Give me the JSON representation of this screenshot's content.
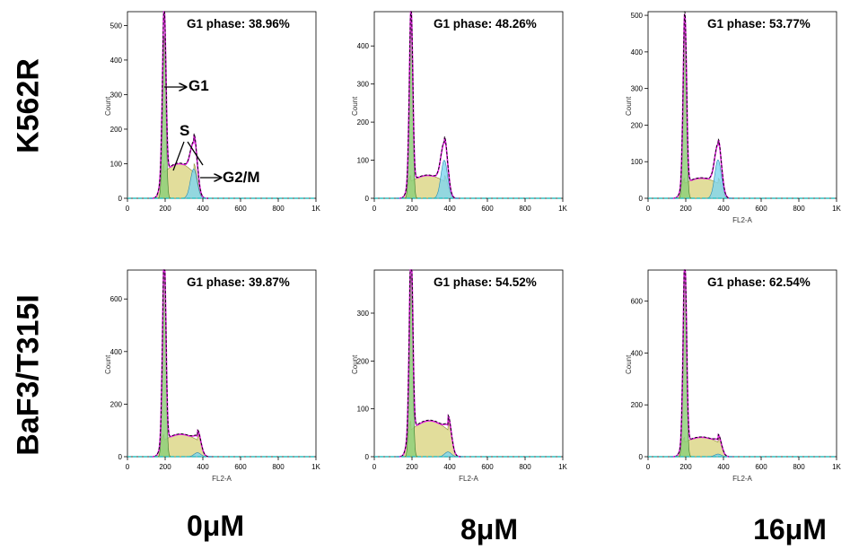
{
  "row_labels": [
    "K562R",
    "BaF3/T315I"
  ],
  "column_labels": [
    "0μM",
    "8μM",
    "16μM"
  ],
  "annotations": {
    "g1": "G1",
    "s": "S",
    "g2m": "G2/M"
  },
  "chart_data": [
    {
      "type": "area",
      "title": "G1 phase: 38.96%",
      "ylabel": "Count",
      "xlabel": "",
      "xlim": [
        0,
        1024
      ],
      "ylim": [
        0,
        540
      ],
      "yticks": [
        0,
        100,
        200,
        300,
        400,
        500
      ],
      "xtick_labels": [
        "0",
        "200",
        "400",
        "600",
        "800",
        "1K"
      ],
      "g1_peak": 470,
      "s_height": 100,
      "g2m_peak": 85,
      "g2m_pos": 360
    },
    {
      "type": "area",
      "title": "G1 phase: 48.26%",
      "ylabel": "Count",
      "xlabel": "",
      "xlim": [
        0,
        1024
      ],
      "ylim": [
        0,
        490
      ],
      "yticks": [
        0,
        100,
        200,
        300,
        400
      ],
      "xtick_labels": [
        "0",
        "200",
        "400",
        "600",
        "800",
        "1K"
      ],
      "g1_peak": 450,
      "s_height": 60,
      "g2m_peak": 100,
      "g2m_pos": 380
    },
    {
      "type": "area",
      "title": "G1 phase: 53.77%",
      "ylabel": "Count",
      "xlabel": "FL2-A",
      "xlim": [
        0,
        1024
      ],
      "ylim": [
        0,
        510
      ],
      "yticks": [
        0,
        100,
        200,
        300,
        400,
        500
      ],
      "xtick_labels": [
        "0",
        "200",
        "400",
        "600",
        "800",
        "1K"
      ],
      "g1_peak": 460,
      "s_height": 55,
      "g2m_peak": 105,
      "g2m_pos": 380
    },
    {
      "type": "area",
      "title": "G1 phase: 39.87%",
      "ylabel": "Count",
      "xlabel": "FL2-A",
      "xlim": [
        0,
        1024
      ],
      "ylim": [
        0,
        710
      ],
      "yticks": [
        0,
        200,
        400,
        600
      ],
      "xtick_labels": [
        "0",
        "200",
        "400",
        "600",
        "800",
        "1K"
      ],
      "g1_peak": 700,
      "s_height": 85,
      "g2m_peak": 15,
      "g2m_pos": 380
    },
    {
      "type": "area",
      "title": "G1 phase: 54.52%",
      "ylabel": "Count",
      "xlabel": "FL2-A",
      "xlim": [
        0,
        1024
      ],
      "ylim": [
        0,
        390
      ],
      "yticks": [
        0,
        100,
        200,
        300
      ],
      "xtick_labels": [
        "0",
        "200",
        "400",
        "600",
        "800",
        "1K"
      ],
      "g1_peak": 380,
      "s_height": 75,
      "g2m_peak": 10,
      "g2m_pos": 400
    },
    {
      "type": "area",
      "title": "G1 phase: 62.54%",
      "ylabel": "Count",
      "xlabel": "FL2-A",
      "xlim": [
        0,
        1024
      ],
      "ylim": [
        0,
        720
      ],
      "yticks": [
        0,
        200,
        400,
        600
      ],
      "xtick_labels": [
        "0",
        "200",
        "400",
        "600",
        "800",
        "1K"
      ],
      "g1_peak": 700,
      "s_height": 75,
      "g2m_peak": 10,
      "g2m_pos": 380
    }
  ]
}
